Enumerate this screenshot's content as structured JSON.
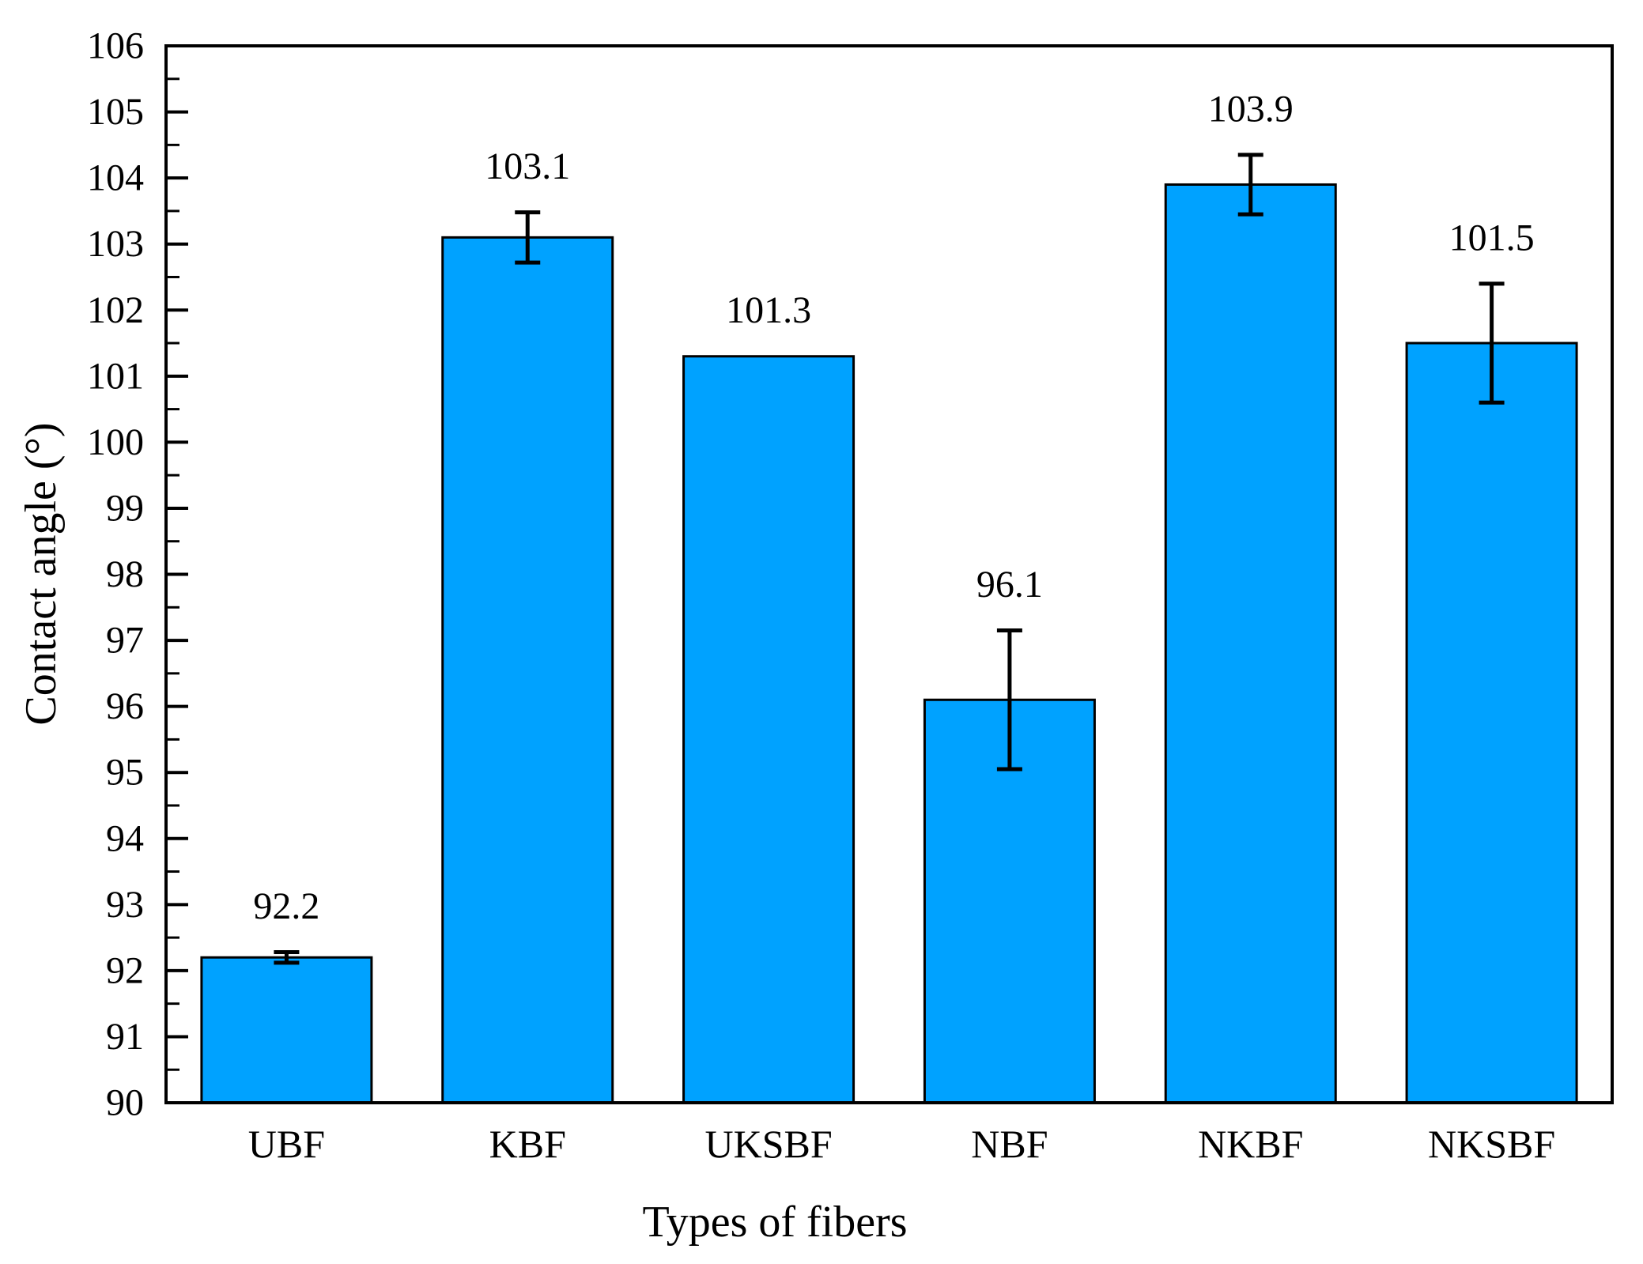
{
  "figure": {
    "background_color": "#ffffff"
  },
  "chart_data": {
    "type": "bar",
    "title": "",
    "xlabel": "Types of fibers",
    "ylabel": "Contact angle (°)",
    "categories": [
      "UBF",
      "KBF",
      "UKSBF",
      "NBF",
      "NKBF",
      "NKSBF"
    ],
    "values": [
      92.2,
      103.1,
      101.3,
      96.1,
      103.9,
      101.5
    ],
    "errors": [
      0.08,
      0.38,
      0,
      1.05,
      0.45,
      0.9
    ],
    "value_labels": [
      "92.2",
      "103.1",
      "101.3",
      "96.1",
      "103.9",
      "101.5"
    ],
    "ylim": [
      90,
      106
    ],
    "ytick_labels": [
      "90",
      "91",
      "92",
      "93",
      "94",
      "95",
      "96",
      "97",
      "98",
      "99",
      "100",
      "101",
      "102",
      "103",
      "104",
      "105",
      "106"
    ],
    "ytick_step": 1,
    "yminor_step": 0.5,
    "grid": false,
    "legend": false,
    "bar_color": "#00A2FF",
    "bar_edge_color": "#000000",
    "error_bar_color": "#000000",
    "axis_color": "#000000"
  }
}
